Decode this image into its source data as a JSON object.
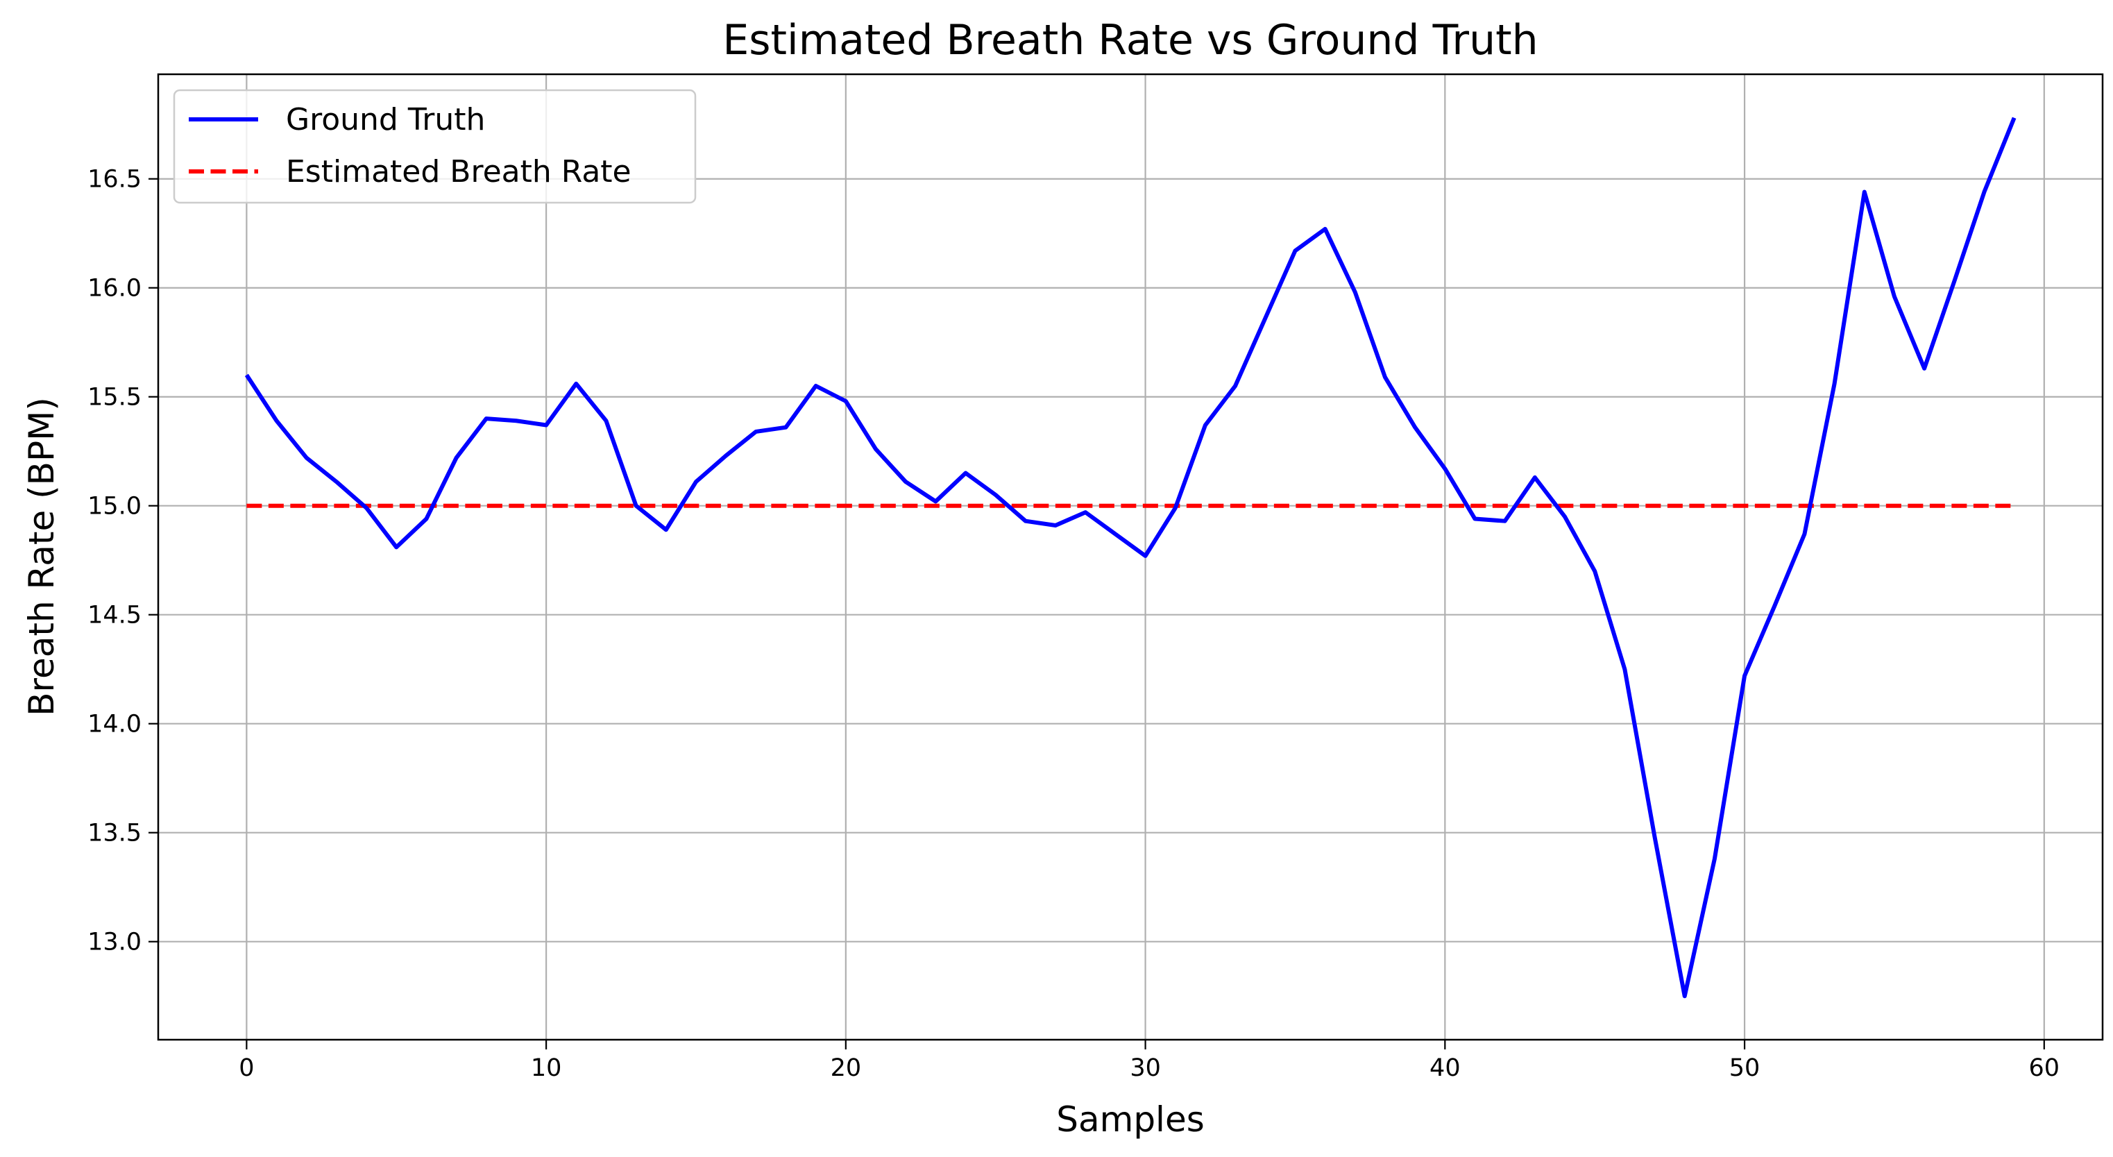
{
  "chart_data": {
    "type": "line",
    "title": "Estimated Breath Rate vs Ground Truth",
    "xlabel": "Samples",
    "ylabel": "Breath Rate (BPM)",
    "xlim": [
      -2.95,
      61.95
    ],
    "ylim": [
      12.55,
      16.98
    ],
    "xticks": [
      0,
      10,
      20,
      30,
      40,
      50,
      60
    ],
    "yticks": [
      13.0,
      13.5,
      14.0,
      14.5,
      15.0,
      15.5,
      16.0,
      16.5
    ],
    "ytick_labels": [
      "13.0",
      "13.5",
      "14.0",
      "14.5",
      "15.0",
      "15.5",
      "16.0",
      "16.5"
    ],
    "grid": true,
    "legend_position": "top-left",
    "x": [
      0,
      1,
      2,
      3,
      4,
      5,
      6,
      7,
      8,
      9,
      10,
      11,
      12,
      13,
      14,
      15,
      16,
      17,
      18,
      19,
      20,
      21,
      22,
      23,
      24,
      25,
      26,
      27,
      28,
      29,
      30,
      31,
      32,
      33,
      34,
      35,
      36,
      37,
      38,
      39,
      40,
      41,
      42,
      43,
      44,
      45,
      46,
      47,
      48,
      49,
      50,
      51,
      52,
      53,
      54,
      55,
      56,
      57,
      58,
      59
    ],
    "series": [
      {
        "name": "Ground Truth",
        "color": "#0000ff",
        "style": "solid",
        "values": [
          15.6,
          15.39,
          15.22,
          15.11,
          14.99,
          14.81,
          14.94,
          15.22,
          15.4,
          15.39,
          15.37,
          15.56,
          15.39,
          15.0,
          14.89,
          15.11,
          15.23,
          15.34,
          15.36,
          15.55,
          15.48,
          15.26,
          15.11,
          15.02,
          15.15,
          15.05,
          14.93,
          14.91,
          14.97,
          14.87,
          14.77,
          14.99,
          15.37,
          15.55,
          15.86,
          16.17,
          16.27,
          15.98,
          15.59,
          15.36,
          15.17,
          14.94,
          14.93,
          15.13,
          14.95,
          14.7,
          14.25,
          13.48,
          12.75,
          13.38,
          14.22,
          14.54,
          14.87,
          15.56,
          16.44,
          15.96,
          15.63,
          16.03,
          16.44,
          16.78
        ]
      },
      {
        "name": "Estimated Breath Rate",
        "color": "#ff0000",
        "style": "dashed",
        "values": [
          15,
          15,
          15,
          15,
          15,
          15,
          15,
          15,
          15,
          15,
          15,
          15,
          15,
          15,
          15,
          15,
          15,
          15,
          15,
          15,
          15,
          15,
          15,
          15,
          15,
          15,
          15,
          15,
          15,
          15,
          15,
          15,
          15,
          15,
          15,
          15,
          15,
          15,
          15,
          15,
          15,
          15,
          15,
          15,
          15,
          15,
          15,
          15,
          15,
          15,
          15,
          15,
          15,
          15,
          15,
          15,
          15,
          15,
          15,
          15
        ]
      }
    ]
  }
}
